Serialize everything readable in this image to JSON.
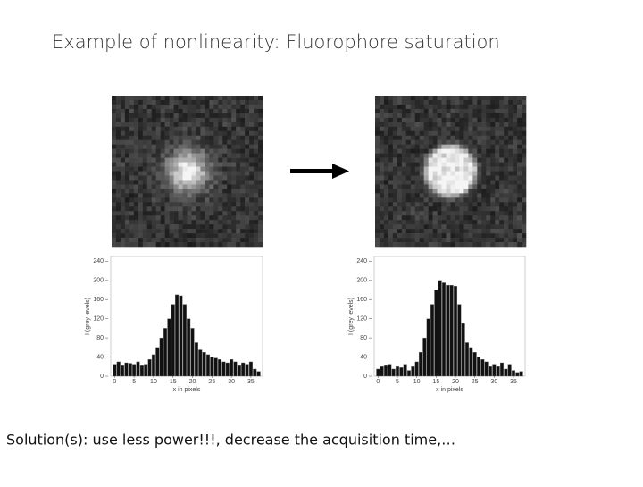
{
  "title": "Example of nonlinearity: Fluorophore saturation",
  "caption": "Solution(s): use less power!!!, decrease the acquisition time,…",
  "chart_data": [
    {
      "type": "bar",
      "xlabel": "x in pixels",
      "ylabel": "I (grey levels)",
      "color": "#111111",
      "x": [
        0,
        1,
        2,
        3,
        4,
        5,
        6,
        7,
        8,
        9,
        10,
        11,
        12,
        13,
        14,
        15,
        16,
        17,
        18,
        19,
        20,
        21,
        22,
        23,
        24,
        25,
        26,
        27,
        28,
        29,
        30,
        31,
        32,
        33,
        34,
        35,
        36,
        37
      ],
      "values": [
        25,
        30,
        22,
        28,
        27,
        25,
        30,
        22,
        25,
        35,
        45,
        60,
        80,
        100,
        120,
        150,
        170,
        168,
        150,
        120,
        100,
        70,
        55,
        50,
        45,
        40,
        38,
        35,
        30,
        28,
        35,
        30,
        22,
        28,
        25,
        30,
        15,
        10
      ],
      "xlim": [
        -1,
        38
      ],
      "xticks": [
        0,
        5,
        10,
        15,
        20,
        25,
        30,
        35
      ],
      "ylim": [
        0,
        250
      ],
      "yticks": [
        0,
        40,
        80,
        120,
        160,
        200,
        240
      ]
    },
    {
      "type": "bar",
      "xlabel": "x in pixels",
      "ylabel": "I (grey levels)",
      "color": "#111111",
      "x": [
        0,
        1,
        2,
        3,
        4,
        5,
        6,
        7,
        8,
        9,
        10,
        11,
        12,
        13,
        14,
        15,
        16,
        17,
        18,
        19,
        20,
        21,
        22,
        23,
        24,
        25,
        26,
        27,
        28,
        29,
        30,
        31,
        32,
        33,
        34,
        35,
        36,
        37
      ],
      "values": [
        15,
        20,
        22,
        25,
        15,
        20,
        18,
        25,
        12,
        20,
        30,
        50,
        80,
        120,
        150,
        180,
        200,
        195,
        190,
        190,
        188,
        150,
        110,
        70,
        60,
        50,
        40,
        35,
        30,
        20,
        25,
        20,
        28,
        15,
        25,
        12,
        8,
        10
      ],
      "xlim": [
        -1,
        38
      ],
      "xticks": [
        0,
        5,
        10,
        15,
        20,
        25,
        30,
        35
      ],
      "ylim": [
        0,
        250
      ],
      "yticks": [
        0,
        40,
        80,
        120,
        160,
        200,
        240
      ]
    }
  ]
}
